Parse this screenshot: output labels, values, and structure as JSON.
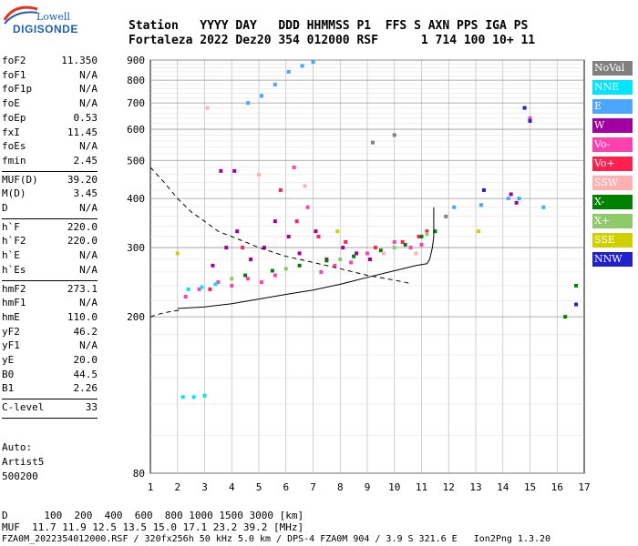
{
  "brand": {
    "line1": "Lowell",
    "line2": "DIGISONDE"
  },
  "header": {
    "row1": "Station   YYYY DAY   DDD HHMMSS P1  FFS S AXN PPS IGA PS",
    "row2": "Fortaleza 2022 Dez20 354 012000 RSF      1 714 100 10+ 11"
  },
  "params": {
    "group1": [
      {
        "name": "foF2",
        "value": "11.350"
      },
      {
        "name": "foF1",
        "value": "N/A"
      },
      {
        "name": "foF1p",
        "value": "N/A"
      },
      {
        "name": "foE",
        "value": "N/A"
      },
      {
        "name": "foEp",
        "value": "0.53"
      },
      {
        "name": "fxI",
        "value": "11.45"
      },
      {
        "name": "foEs",
        "value": "N/A"
      },
      {
        "name": "fmin",
        "value": "2.45"
      }
    ],
    "group2": [
      {
        "name": "MUF(D)",
        "value": "39.20"
      },
      {
        "name": "M(D)",
        "value": "3.45"
      },
      {
        "name": "D",
        "value": "N/A"
      }
    ],
    "group3": [
      {
        "name": "h`F",
        "value": "220.0"
      },
      {
        "name": "h`F2",
        "value": "220.0"
      },
      {
        "name": "h`E",
        "value": "N/A"
      },
      {
        "name": "h`Es",
        "value": "N/A"
      }
    ],
    "group4": [
      {
        "name": "hmF2",
        "value": "273.1"
      },
      {
        "name": "hmF1",
        "value": "N/A"
      },
      {
        "name": "hmE",
        "value": "110.0"
      },
      {
        "name": "yF2",
        "value": "46.2"
      },
      {
        "name": "yF1",
        "value": "N/A"
      },
      {
        "name": "yE",
        "value": "20.0"
      },
      {
        "name": "B0",
        "value": "44.5"
      },
      {
        "name": "B1",
        "value": "2.26"
      }
    ],
    "group5": [
      {
        "name": "C-level",
        "value": "33"
      }
    ]
  },
  "autoscaling": {
    "line1": "Auto:",
    "line2": "Artist5",
    "line3": "500200"
  },
  "legend": [
    {
      "label": "NoVal",
      "color": "#808080"
    },
    {
      "label": "NNE",
      "color": "#00e5ff"
    },
    {
      "label": "E",
      "color": "#4aa6ff"
    },
    {
      "label": "W",
      "color": "#a000a0"
    },
    {
      "label": "Vo-",
      "color": "#ff40b0"
    },
    {
      "label": "Vo+",
      "color": "#ff2050"
    },
    {
      "label": "SSW",
      "color": "#ffb0b0"
    },
    {
      "label": "X-",
      "color": "#008000"
    },
    {
      "label": "X+",
      "color": "#8fca6a"
    },
    {
      "label": "SSE",
      "color": "#d0d000"
    },
    {
      "label": "NNW",
      "color": "#2020d0"
    }
  ],
  "footer": {
    "row1": "D      100  200  400  600  800 1000 1500 3000 [km]",
    "row2": "MUF  11.7 11.9 12.5 13.5 15.0 17.1 23.2 39.2 [MHz]",
    "row3": "FZA0M_2022354012000.RSF / 320fx256h 50 kHz 5.0 km / DPS-4 FZA0M 904 / 3.9 S 321.6 E   Ion2Png 1.3.20"
  },
  "chart_data": {
    "type": "scatter",
    "x_ticks": [
      "1",
      "2",
      "3",
      "4",
      "5",
      "6",
      "7",
      "8",
      "9",
      "10",
      "11",
      "12",
      "13",
      "14",
      "15",
      "16",
      "17"
    ],
    "y_ticks": [
      "80",
      "200",
      "300",
      "400",
      "500",
      "600",
      "700",
      "800",
      "900"
    ],
    "xlim": [
      1,
      17
    ],
    "ylim": [
      80,
      900
    ],
    "y_scale": "log",
    "grid": true,
    "series": [
      {
        "name": "W",
        "color": "#a000a0",
        "points": [
          [
            3.3,
            270
          ],
          [
            3.8,
            300
          ],
          [
            4.2,
            330
          ],
          [
            4.7,
            280
          ],
          [
            5.2,
            300
          ],
          [
            5.6,
            350
          ],
          [
            6.1,
            320
          ],
          [
            6.5,
            290
          ],
          [
            7.1,
            330
          ],
          [
            7.5,
            280
          ],
          [
            8.1,
            300
          ],
          [
            8.6,
            290
          ],
          [
            9.1,
            280
          ],
          [
            3.6,
            470
          ],
          [
            4.1,
            470
          ],
          [
            14.3,
            410
          ],
          [
            14.5,
            390
          ]
        ]
      },
      {
        "name": "Vo-",
        "color": "#ff40b0",
        "points": [
          [
            2.3,
            225
          ],
          [
            2.8,
            235
          ],
          [
            3.5,
            245
          ],
          [
            4.0,
            240
          ],
          [
            4.6,
            250
          ],
          [
            5.1,
            245
          ],
          [
            5.6,
            255
          ],
          [
            6.3,
            480
          ],
          [
            6.8,
            380
          ],
          [
            7.3,
            260
          ],
          [
            7.8,
            270
          ],
          [
            8.4,
            275
          ],
          [
            9.0,
            290
          ],
          [
            10.0,
            310
          ],
          [
            10.6,
            300
          ],
          [
            11.0,
            305
          ],
          [
            15.0,
            640
          ]
        ]
      },
      {
        "name": "Vo+",
        "color": "#ff2050",
        "points": [
          [
            3.2,
            235
          ],
          [
            4.4,
            300
          ],
          [
            5.8,
            420
          ],
          [
            6.4,
            350
          ],
          [
            7.2,
            320
          ],
          [
            8.2,
            310
          ],
          [
            9.3,
            300
          ],
          [
            10.3,
            310
          ],
          [
            10.9,
            320
          ],
          [
            11.2,
            330
          ]
        ]
      },
      {
        "name": "NNE",
        "color": "#00e5ff",
        "points": [
          [
            2.4,
            235
          ],
          [
            2.9,
            238
          ],
          [
            3.4,
            242
          ],
          [
            2.2,
            125
          ],
          [
            2.6,
            125
          ],
          [
            3.0,
            126
          ]
        ]
      },
      {
        "name": "E",
        "color": "#4aa6ff",
        "points": [
          [
            4.6,
            700
          ],
          [
            5.1,
            730
          ],
          [
            5.6,
            780
          ],
          [
            6.1,
            840
          ],
          [
            6.6,
            870
          ],
          [
            7.0,
            890
          ],
          [
            14.2,
            400
          ],
          [
            14.6,
            400
          ],
          [
            13.2,
            385
          ],
          [
            15.5,
            380
          ],
          [
            12.2,
            380
          ]
        ]
      },
      {
        "name": "X-",
        "color": "#008000",
        "points": [
          [
            4.5,
            255
          ],
          [
            5.5,
            262
          ],
          [
            6.5,
            270
          ],
          [
            7.5,
            278
          ],
          [
            8.5,
            285
          ],
          [
            9.5,
            295
          ],
          [
            10.4,
            305
          ],
          [
            11.0,
            320
          ],
          [
            11.5,
            330
          ],
          [
            16.7,
            240
          ],
          [
            16.3,
            200
          ]
        ]
      },
      {
        "name": "X+",
        "color": "#8fca6a",
        "points": [
          [
            4.0,
            250
          ],
          [
            6.0,
            265
          ],
          [
            8.0,
            280
          ],
          [
            10.0,
            300
          ],
          [
            11.2,
            325
          ]
        ]
      },
      {
        "name": "SSW",
        "color": "#ffb0b0",
        "points": [
          [
            3.1,
            680
          ],
          [
            5.0,
            460
          ],
          [
            6.7,
            430
          ],
          [
            9.6,
            290
          ],
          [
            10.8,
            290
          ]
        ]
      },
      {
        "name": "SSE",
        "color": "#d0d000",
        "points": [
          [
            2.0,
            290
          ],
          [
            7.9,
            330
          ],
          [
            13.1,
            330
          ]
        ]
      },
      {
        "name": "NNW",
        "color": "#2020d0",
        "points": [
          [
            14.8,
            680
          ],
          [
            15.0,
            630
          ],
          [
            16.7,
            215
          ],
          [
            13.3,
            420
          ]
        ]
      },
      {
        "name": "NoVal",
        "color": "#808080",
        "points": [
          [
            9.2,
            555
          ],
          [
            10.0,
            580
          ],
          [
            11.9,
            360
          ]
        ]
      }
    ],
    "model_profile": [
      [
        2.0,
        210
      ],
      [
        3.0,
        212
      ],
      [
        4.0,
        216
      ],
      [
        5.0,
        222
      ],
      [
        6.0,
        228
      ],
      [
        7.0,
        234
      ],
      [
        8.0,
        242
      ],
      [
        9.0,
        252
      ],
      [
        10.0,
        262
      ],
      [
        10.8,
        270
      ],
      [
        11.2,
        273
      ],
      [
        11.3,
        280
      ],
      [
        11.4,
        300
      ],
      [
        11.45,
        320
      ],
      [
        11.45,
        380
      ]
    ],
    "muf_curve": [
      [
        1.0,
        480
      ],
      [
        1.5,
        440
      ],
      [
        2.0,
        400
      ],
      [
        2.5,
        370
      ],
      [
        3.0,
        350
      ],
      [
        3.5,
        330
      ],
      [
        4.0,
        320
      ],
      [
        4.5,
        310
      ],
      [
        5.0,
        300
      ],
      [
        6.0,
        285
      ],
      [
        7.0,
        275
      ],
      [
        8.0,
        265
      ],
      [
        9.0,
        255
      ],
      [
        10.0,
        248
      ],
      [
        10.6,
        243
      ]
    ],
    "low_dash": [
      [
        1.0,
        200
      ],
      [
        1.3,
        203
      ],
      [
        1.7,
        206
      ],
      [
        2.1,
        208
      ]
    ]
  }
}
